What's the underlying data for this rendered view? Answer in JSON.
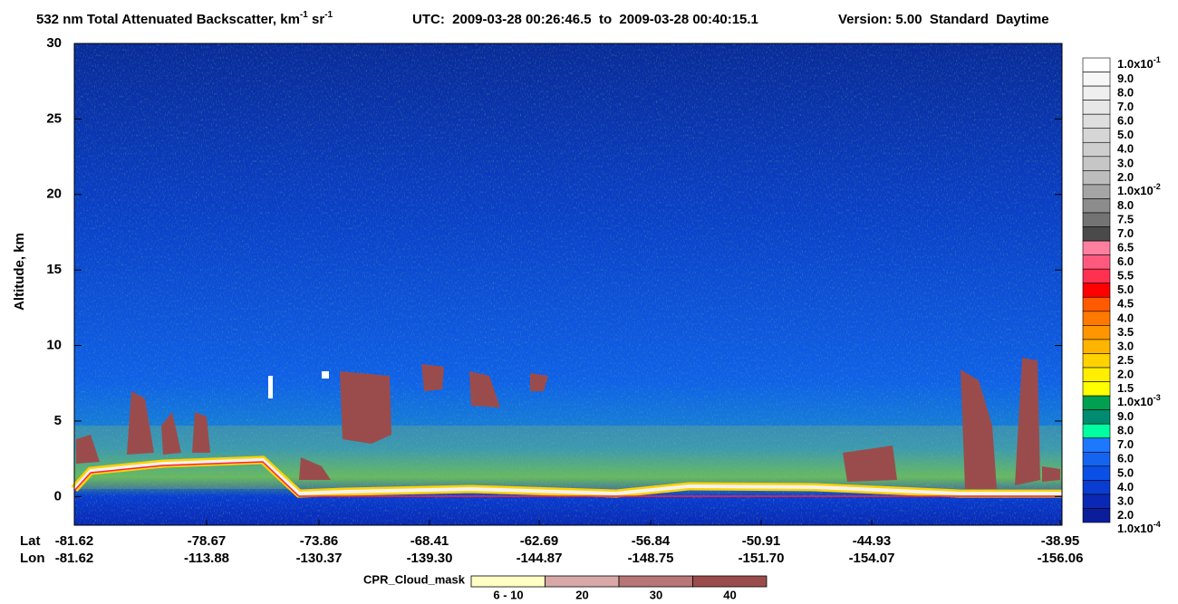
{
  "chart_data": {
    "type": "heatmap",
    "title": "532 nm Total Attenuated Backscatter, km",
    "title_sup1": "-1",
    "title_mid": " sr",
    "title_sup2": "-1",
    "time_range": "UTC:  2009-03-28 00:26:46.5  to  2009-03-28 00:40:15.1",
    "version": "Version: 5.00  Standard  Daytime",
    "ylabel": "Altitude, km",
    "ylim": [
      -1.9,
      30
    ],
    "yticks": [
      0,
      5,
      10,
      15,
      20,
      25,
      30
    ],
    "lat_label": "Lat",
    "lon_label": "Lon",
    "lat": [
      "-81.62",
      "-78.67",
      "-73.86",
      "-68.41",
      "-62.69",
      "-56.84",
      "-50.91",
      "-44.93",
      "-38.95"
    ],
    "lon": [
      "-81.62",
      "-113.88",
      "-130.37",
      "-139.30",
      "-144.87",
      "-148.75",
      "-151.70",
      "-154.07",
      "-156.06"
    ],
    "colorbar_levels": [
      {
        "base": "1.0x10",
        "sup": "-1"
      },
      "9.0",
      "8.0",
      "7.0",
      "6.0",
      "5.0",
      "4.0",
      "3.0",
      "2.0",
      {
        "base": "1.0x10",
        "sup": "-2"
      },
      "8.0",
      "7.5",
      "7.0",
      "6.5",
      "6.0",
      "5.5",
      "5.0",
      "4.5",
      "4.0",
      "3.5",
      "3.0",
      "2.5",
      "2.0",
      "1.5",
      {
        "base": "1.0x10",
        "sup": "-3"
      },
      "9.0",
      "8.0",
      "7.0",
      "6.0",
      "5.0",
      "4.0",
      "3.0",
      "2.0",
      {
        "base": "1.0x10",
        "sup": "-4"
      }
    ],
    "colorbar_colors": [
      "#ffffff",
      "#f7f7f7",
      "#efefef",
      "#e7e7e7",
      "#dedede",
      "#d6d6d6",
      "#cecece",
      "#c6c6c6",
      "#bdbdbd",
      "#a5a5a5",
      "#8c8c8c",
      "#737373",
      "#4a4a4a",
      "#ff7fa0",
      "#ff5a7d",
      "#ff3050",
      "#ff0000",
      "#ff5a00",
      "#ff7800",
      "#ff9600",
      "#ffb400",
      "#ffd200",
      "#ffee00",
      "#ffff00",
      "#00a050",
      "#008c70",
      "#00ffa0",
      "#1e78ff",
      "#1464f0",
      "#0a50e6",
      "#0a3cd2",
      "#0a28b4",
      "#0a1e9b"
    ],
    "mask_title": "CPR_Cloud_mask",
    "mask_categories": [
      "6 - 10",
      "20",
      "30",
      "40"
    ],
    "mask_colors": [
      "#ffffc4",
      "#d8a8a8",
      "#b87676",
      "#9a4c4c"
    ]
  }
}
